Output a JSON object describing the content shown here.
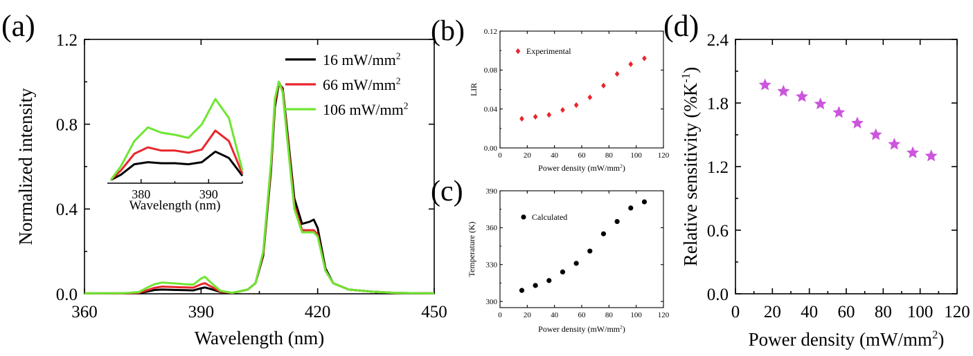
{
  "chart_data": [
    {
      "panel": "(a)",
      "type": "line",
      "xlabel": "Wavelength (nm)",
      "ylabel": "Normalized intensity",
      "xlim": [
        360,
        450
      ],
      "ylim": [
        0,
        1.2
      ],
      "xticks": [
        "360",
        "390",
        "420",
        "450"
      ],
      "yticks": [
        "0.0",
        "0.4",
        "0.8",
        "1.2"
      ],
      "legend": "top-right",
      "series": [
        {
          "name": "16 mW/mm",
          "sup": "2",
          "color": "#000000",
          "x": [
            360,
            370,
            374,
            376,
            378,
            380,
            384,
            386,
            388,
            390,
            391,
            393,
            395,
            398,
            402,
            404,
            406,
            408,
            409,
            410,
            411,
            412,
            414,
            416,
            418,
            419,
            420,
            422,
            424,
            428,
            434,
            440,
            450
          ],
          "y": [
            0.002,
            0.002,
            0.004,
            0.01,
            0.018,
            0.02,
            0.018,
            0.017,
            0.016,
            0.026,
            0.03,
            0.02,
            0.008,
            0.004,
            0.02,
            0.05,
            0.18,
            0.58,
            0.88,
            0.99,
            0.97,
            0.8,
            0.45,
            0.33,
            0.34,
            0.35,
            0.31,
            0.12,
            0.05,
            0.02,
            0.01,
            0.004,
            0.002
          ]
        },
        {
          "name": "66 mW/mm",
          "sup": "2",
          "color": "#e8262c",
          "x": [
            360,
            370,
            374,
            376,
            378,
            380,
            384,
            386,
            388,
            390,
            391,
            393,
            395,
            398,
            402,
            404,
            406,
            408,
            409,
            410,
            411,
            412,
            414,
            416,
            418,
            419,
            420,
            422,
            424,
            428,
            434,
            440,
            450
          ],
          "y": [
            0.002,
            0.002,
            0.005,
            0.016,
            0.028,
            0.034,
            0.031,
            0.03,
            0.029,
            0.045,
            0.05,
            0.03,
            0.01,
            0.004,
            0.02,
            0.05,
            0.19,
            0.6,
            0.9,
            1.0,
            0.96,
            0.78,
            0.42,
            0.3,
            0.3,
            0.3,
            0.28,
            0.11,
            0.05,
            0.02,
            0.01,
            0.004,
            0.002
          ]
        },
        {
          "name": "106 mW/mm",
          "sup": "2",
          "color": "#6ee632",
          "x": [
            360,
            370,
            374,
            376,
            378,
            380,
            384,
            386,
            388,
            390,
            391,
            393,
            395,
            398,
            402,
            404,
            406,
            408,
            409,
            410,
            411,
            412,
            414,
            416,
            418,
            419,
            420,
            422,
            424,
            428,
            434,
            440,
            450
          ],
          "y": [
            0.002,
            0.003,
            0.008,
            0.028,
            0.045,
            0.053,
            0.048,
            0.045,
            0.043,
            0.072,
            0.08,
            0.045,
            0.014,
            0.005,
            0.02,
            0.05,
            0.2,
            0.62,
            0.92,
            1.0,
            0.95,
            0.76,
            0.4,
            0.29,
            0.29,
            0.29,
            0.27,
            0.11,
            0.05,
            0.02,
            0.01,
            0.004,
            0.002
          ]
        }
      ],
      "inset": {
        "xlabel": "Wavelength (nm)",
        "xlim": [
          375,
          395
        ],
        "ylim": [
          0,
          0.09
        ],
        "xticks": [
          "380",
          "390"
        ],
        "series": [
          {
            "color": "#000000",
            "x": [
              375.5,
              377,
              379,
              381,
              383,
              385,
              387,
              389,
              391,
              393,
              395
            ],
            "y": [
              0.003,
              0.008,
              0.018,
              0.02,
              0.019,
              0.019,
              0.018,
              0.02,
              0.03,
              0.024,
              0.007
            ]
          },
          {
            "color": "#e8262c",
            "x": [
              375.5,
              377,
              379,
              381,
              383,
              385,
              387,
              389,
              391,
              393,
              395
            ],
            "y": [
              0.003,
              0.012,
              0.028,
              0.034,
              0.031,
              0.031,
              0.029,
              0.032,
              0.05,
              0.04,
              0.009
            ]
          },
          {
            "color": "#6ee632",
            "x": [
              375.5,
              377,
              379,
              381,
              383,
              385,
              387,
              389,
              391,
              393,
              395
            ],
            "y": [
              0.003,
              0.016,
              0.04,
              0.053,
              0.048,
              0.046,
              0.043,
              0.056,
              0.08,
              0.062,
              0.012
            ]
          }
        ]
      }
    },
    {
      "panel": "(b)",
      "type": "scatter",
      "xlabel": "Power density (mW/mm",
      "xlabel_sup": "2",
      "xlabel_tail": ")",
      "ylabel": "LIR",
      "xlim": [
        0,
        120
      ],
      "ylim": [
        0,
        0.12
      ],
      "xticks": [
        "0",
        "20",
        "40",
        "60",
        "80",
        "100",
        "120"
      ],
      "yticks": [
        "0.00",
        "0.04",
        "0.08",
        "0.12"
      ],
      "legend": "top-left",
      "series": [
        {
          "name": "Experimental",
          "color": "#e8262c",
          "marker": "diamond",
          "x": [
            16,
            26,
            36,
            46,
            56,
            66,
            76,
            86,
            96,
            106
          ],
          "y": [
            0.03,
            0.032,
            0.034,
            0.039,
            0.044,
            0.052,
            0.064,
            0.076,
            0.086,
            0.092
          ]
        }
      ]
    },
    {
      "panel": "(c)",
      "type": "scatter",
      "xlabel": "Power density (mW/mm",
      "xlabel_sup": "2",
      "xlabel_tail": ")",
      "ylabel": "Temperature (K)",
      "xlim": [
        0,
        120
      ],
      "ylim": [
        295,
        390
      ],
      "yticks_values": [
        300,
        330,
        360,
        390
      ],
      "xticks": [
        "0",
        "20",
        "40",
        "60",
        "80",
        "100",
        "120"
      ],
      "yticks": [
        "300",
        "330",
        "360",
        "390"
      ],
      "legend": "top-left",
      "series": [
        {
          "name": "Calculated",
          "color": "#000000",
          "marker": "circle",
          "x": [
            16,
            26,
            36,
            46,
            56,
            66,
            76,
            86,
            96,
            106
          ],
          "y": [
            309,
            313,
            317,
            324,
            331,
            341,
            355,
            365,
            376,
            381
          ]
        }
      ]
    },
    {
      "panel": "(d)",
      "type": "scatter",
      "xlabel": "Power density (mW/mm",
      "xlabel_sup": "2",
      "xlabel_tail": ")",
      "ylabel": "Relative sensitivity (%K",
      "ylabel_sup": "-1",
      "ylabel_tail": ")",
      "xlim": [
        0,
        120
      ],
      "ylim": [
        0,
        2.4
      ],
      "xticks": [
        "0",
        "20",
        "40",
        "60",
        "80",
        "100",
        "120"
      ],
      "yticks": [
        "0.0",
        "0.6",
        "1.2",
        "1.8",
        "2.4"
      ],
      "series": [
        {
          "color": "#cc55dd",
          "marker": "star",
          "x": [
            16,
            26,
            36,
            46,
            56,
            66,
            76,
            86,
            96,
            106
          ],
          "y": [
            1.97,
            1.91,
            1.86,
            1.79,
            1.71,
            1.61,
            1.5,
            1.41,
            1.33,
            1.3
          ]
        }
      ]
    }
  ]
}
